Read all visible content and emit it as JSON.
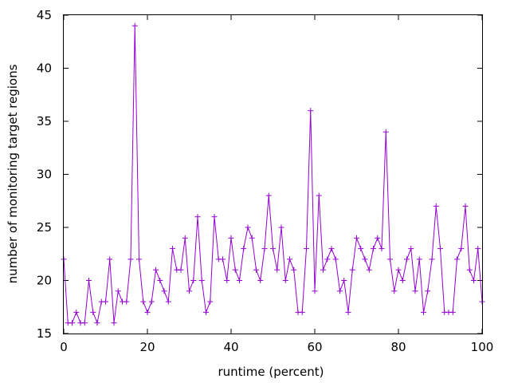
{
  "chart_data": {
    "type": "line",
    "title": "",
    "xlabel": "runtime (percent)",
    "ylabel": "number of monitoring target regions",
    "xlim": [
      0,
      100
    ],
    "ylim": [
      15,
      45
    ],
    "xticks": [
      "0",
      "20",
      "40",
      "60",
      "80",
      "100"
    ],
    "yticks": [
      "15",
      "20",
      "25",
      "30",
      "35",
      "40",
      "45"
    ],
    "grid": false,
    "legend": "none",
    "marker": "plus",
    "color": "#9400d3",
    "series": [
      {
        "x": [
          0,
          1,
          2,
          3,
          4,
          5,
          6,
          7,
          8,
          9,
          10,
          11,
          12,
          13,
          14,
          15,
          16,
          17,
          18,
          19,
          20,
          21,
          22,
          23,
          24,
          25,
          26,
          27,
          28,
          29,
          30,
          31,
          32,
          33,
          34,
          35,
          36,
          37,
          38,
          39,
          40,
          41,
          42,
          43,
          44,
          45,
          46,
          47,
          48,
          49,
          50,
          51,
          52,
          53,
          54,
          55,
          56,
          57,
          58,
          59,
          60,
          61,
          62,
          63,
          64,
          65,
          66,
          67,
          68,
          69,
          70,
          71,
          72,
          73,
          74,
          75,
          76,
          77,
          78,
          79,
          80,
          81,
          82,
          83,
          84,
          85,
          86,
          87,
          88,
          89,
          90,
          91,
          92,
          93,
          94,
          95,
          96,
          97,
          98,
          99,
          100
        ],
        "values": [
          22,
          16,
          16,
          17,
          16,
          16,
          20,
          17,
          16,
          18,
          18,
          22,
          16,
          19,
          18,
          18,
          22,
          44,
          22,
          18,
          17,
          18,
          21,
          20,
          19,
          18,
          23,
          21,
          21,
          24,
          19,
          20,
          26,
          20,
          17,
          18,
          26,
          22,
          22,
          20,
          24,
          21,
          20,
          23,
          25,
          24,
          21,
          20,
          23,
          28,
          23,
          21,
          25,
          20,
          22,
          21,
          17,
          17,
          23,
          36,
          19,
          28,
          21,
          22,
          23,
          22,
          19,
          20,
          17,
          21,
          24,
          23,
          22,
          21,
          23,
          24,
          23,
          34,
          22,
          19,
          21,
          20,
          22,
          23,
          19,
          22,
          17,
          19,
          22,
          27,
          23,
          17,
          17,
          17,
          22,
          23,
          27,
          21,
          20,
          23,
          18
        ]
      }
    ]
  }
}
